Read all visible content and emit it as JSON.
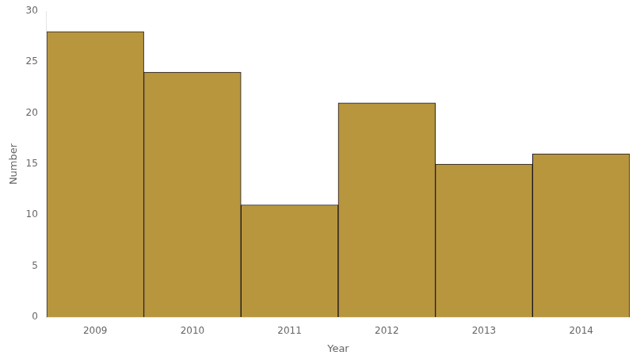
{
  "chart_data": {
    "type": "bar",
    "xlabel": "Year",
    "ylabel": "Number",
    "categories": [
      "2009",
      "2010",
      "2011",
      "2012",
      "2013",
      "2014"
    ],
    "values": [
      28,
      24,
      11,
      21,
      15,
      16
    ],
    "color": "#b8963e",
    "ylim": [
      0,
      30
    ],
    "yticks": [
      0,
      5,
      10,
      15,
      20,
      25,
      30
    ],
    "grid": false
  }
}
